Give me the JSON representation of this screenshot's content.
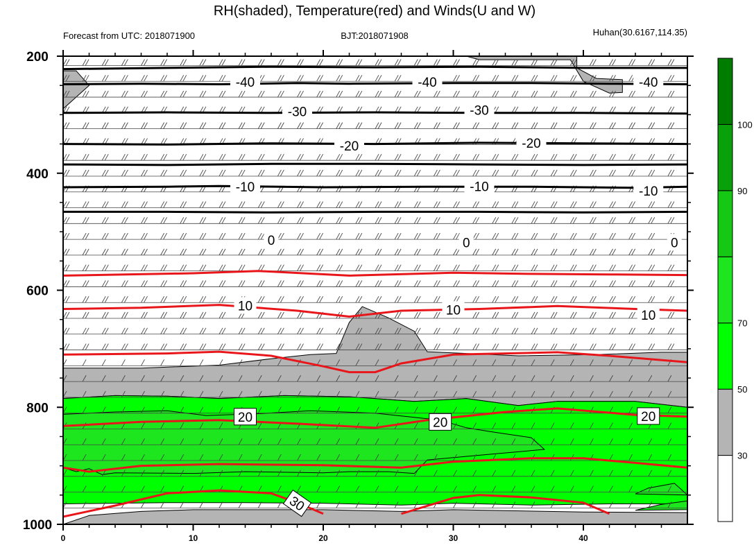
{
  "header": {
    "title": "RH(shaded), Temperature(red) and Winds(U and W)",
    "forecast": "Forecast from UTC: 2018071900",
    "bjt": "BJT:2018071908",
    "location": "Huhan(30.6167,114.35)"
  },
  "chart_data": {
    "type": "contour",
    "title": "RH(shaded), Temperature(red) and Winds(U and W)",
    "xlim": [
      0,
      48
    ],
    "ylim": [
      1000,
      200
    ],
    "x_ticks": [
      0,
      10,
      20,
      30,
      40
    ],
    "y_ticks": [
      200,
      400,
      600,
      800,
      1000
    ],
    "colorbar": {
      "ticks": [
        30,
        50,
        70,
        90,
        100
      ],
      "bins": [
        {
          "max": 30,
          "color": "#ffffff"
        },
        {
          "max": 50,
          "color": "#b4b4b4"
        },
        {
          "max": 70,
          "color": "#00ff00"
        },
        {
          "max": 80,
          "color": "#1ee61e"
        },
        {
          "max": 90,
          "color": "#14c814"
        },
        {
          "max": 100,
          "color": "#0aa00a"
        },
        {
          "max": 110,
          "color": "#007d00"
        }
      ]
    },
    "rh_regions": [
      {
        "level": "gray",
        "color": "#b4b4b4",
        "points": [
          [
            0,
            225
          ],
          [
            0,
            290
          ],
          [
            2,
            250
          ],
          [
            1,
            225
          ]
        ]
      },
      {
        "level": "gray",
        "color": "#b4b4b4",
        "points": [
          [
            31,
            200
          ],
          [
            32,
            206
          ],
          [
            39,
            206
          ],
          [
            40,
            243
          ],
          [
            42,
            263
          ],
          [
            43,
            262
          ],
          [
            43,
            240
          ],
          [
            41,
            238
          ],
          [
            39.5,
            220
          ],
          [
            39.5,
            200
          ]
        ]
      },
      {
        "level": "gray",
        "color": "#b4b4b4",
        "points": [
          [
            0,
            733
          ],
          [
            6,
            733
          ],
          [
            12,
            728
          ],
          [
            16,
            717
          ],
          [
            19,
            710
          ],
          [
            21,
            708
          ],
          [
            22,
            655
          ],
          [
            23,
            628
          ],
          [
            25,
            647
          ],
          [
            27,
            670
          ],
          [
            28,
            705
          ],
          [
            31,
            708
          ],
          [
            35,
            712
          ],
          [
            41,
            710
          ],
          [
            46,
            706
          ],
          [
            48,
            706
          ],
          [
            48,
            800
          ],
          [
            44,
            790
          ],
          [
            38,
            790
          ],
          [
            35,
            797
          ],
          [
            31,
            785
          ],
          [
            27,
            790
          ],
          [
            22,
            782
          ],
          [
            17,
            780
          ],
          [
            12,
            785
          ],
          [
            8,
            781
          ],
          [
            4,
            780
          ],
          [
            0,
            785
          ]
        ]
      },
      {
        "level": "green",
        "color": "#00ff00",
        "points": [
          [
            0,
            785
          ],
          [
            4,
            780
          ],
          [
            8,
            781
          ],
          [
            12,
            785
          ],
          [
            17,
            780
          ],
          [
            22,
            782
          ],
          [
            27,
            790
          ],
          [
            31,
            785
          ],
          [
            35,
            797
          ],
          [
            38,
            790
          ],
          [
            44,
            790
          ],
          [
            48,
            800
          ],
          [
            48,
            965
          ],
          [
            42,
            965
          ],
          [
            36,
            967
          ],
          [
            30,
            964
          ],
          [
            26,
            967
          ],
          [
            20,
            964
          ],
          [
            14,
            963
          ],
          [
            8,
            963
          ],
          [
            4,
            964
          ],
          [
            0,
            965
          ]
        ]
      },
      {
        "level": "green2",
        "color": "#1ee61e",
        "points": [
          [
            0,
            812
          ],
          [
            4,
            808
          ],
          [
            8,
            806
          ],
          [
            11,
            814
          ],
          [
            15,
            811
          ],
          [
            19,
            806
          ],
          [
            24,
            810
          ],
          [
            29,
            822
          ],
          [
            31,
            835
          ],
          [
            33,
            842
          ],
          [
            36,
            852
          ],
          [
            37,
            872
          ],
          [
            32,
            882
          ],
          [
            28,
            890
          ],
          [
            27,
            913
          ],
          [
            25,
            910
          ],
          [
            22,
            910
          ],
          [
            20,
            912
          ],
          [
            14,
            910
          ],
          [
            10,
            913
          ],
          [
            4,
            912
          ],
          [
            3,
            915
          ],
          [
            2,
            905
          ],
          [
            1,
            910
          ],
          [
            0,
            903
          ]
        ]
      },
      {
        "level": "green2",
        "color": "#1ee61e",
        "points": [
          [
            47,
            930
          ],
          [
            45,
            938
          ],
          [
            44,
            948
          ],
          [
            48,
            950
          ]
        ]
      },
      {
        "level": "green2",
        "color": "#1ee61e",
        "points": [
          [
            44,
            976
          ],
          [
            46,
            966
          ],
          [
            48,
            960
          ],
          [
            48,
            975
          ]
        ]
      },
      {
        "level": "gray",
        "color": "#b4b4b4",
        "points": [
          [
            0,
            1000
          ],
          [
            2,
            985
          ],
          [
            6,
            978
          ],
          [
            10,
            975
          ],
          [
            20,
            975
          ],
          [
            26,
            978
          ],
          [
            30,
            975
          ],
          [
            40,
            979
          ],
          [
            48,
            980
          ],
          [
            48,
            1000
          ]
        ]
      }
    ],
    "isotherm_black": [
      {
        "values": [
          [
            0,
            222
          ],
          [
            8,
            220
          ],
          [
            16,
            218
          ],
          [
            24,
            219
          ],
          [
            32,
            218
          ],
          [
            40,
            220
          ],
          [
            48,
            220
          ]
        ]
      },
      {
        "values": [
          [
            0,
            248
          ],
          [
            6,
            247
          ],
          [
            12,
            248
          ],
          [
            18,
            246
          ],
          [
            22,
            247
          ],
          [
            30,
            246
          ],
          [
            36,
            246
          ],
          [
            42,
            247
          ],
          [
            48,
            248
          ]
        ]
      },
      {
        "values": [
          [
            0,
            297
          ],
          [
            8,
            296
          ],
          [
            16,
            297
          ],
          [
            24,
            296
          ],
          [
            32,
            297
          ],
          [
            40,
            297
          ],
          [
            48,
            298
          ]
        ]
      },
      {
        "values": [
          [
            0,
            350
          ],
          [
            8,
            351
          ],
          [
            16,
            349
          ],
          [
            24,
            350
          ],
          [
            32,
            348
          ],
          [
            40,
            349
          ],
          [
            48,
            350
          ]
        ]
      },
      {
        "values": [
          [
            0,
            385
          ],
          [
            8,
            386
          ],
          [
            16,
            384
          ],
          [
            24,
            384
          ],
          [
            32,
            385
          ],
          [
            40,
            386
          ],
          [
            48,
            385
          ]
        ]
      },
      {
        "values": [
          [
            0,
            424
          ],
          [
            8,
            423
          ],
          [
            12,
            422
          ],
          [
            20,
            424
          ],
          [
            28,
            423
          ],
          [
            36,
            423
          ],
          [
            44,
            425
          ],
          [
            48,
            423
          ]
        ]
      },
      {
        "values": [
          [
            0,
            466
          ],
          [
            8,
            466
          ],
          [
            16,
            467
          ],
          [
            24,
            466
          ],
          [
            32,
            466
          ],
          [
            40,
            467
          ],
          [
            48,
            466
          ]
        ]
      }
    ],
    "isotherm_red": [
      {
        "values": [
          [
            0,
            575
          ],
          [
            10,
            571
          ],
          [
            15,
            567
          ],
          [
            22,
            575
          ],
          [
            30,
            570
          ],
          [
            36,
            572
          ],
          [
            42,
            573
          ],
          [
            48,
            574
          ]
        ]
      },
      {
        "values": [
          [
            0,
            632
          ],
          [
            6,
            630
          ],
          [
            12,
            625
          ],
          [
            18,
            635
          ],
          [
            22,
            645
          ],
          [
            26,
            635
          ],
          [
            32,
            632
          ],
          [
            38,
            627
          ],
          [
            44,
            632
          ],
          [
            48,
            635
          ]
        ]
      },
      {
        "values": [
          [
            0,
            710
          ],
          [
            8,
            708
          ],
          [
            12,
            705
          ],
          [
            16,
            712
          ],
          [
            20,
            730
          ],
          [
            22,
            740
          ],
          [
            24,
            740
          ],
          [
            26,
            725
          ],
          [
            30,
            710
          ],
          [
            38,
            706
          ],
          [
            42,
            712
          ],
          [
            48,
            723
          ]
        ]
      },
      {
        "values": [
          [
            0,
            832
          ],
          [
            6,
            825
          ],
          [
            12,
            822
          ],
          [
            18,
            828
          ],
          [
            24,
            835
          ],
          [
            28,
            822
          ],
          [
            34,
            808
          ],
          [
            38,
            802
          ],
          [
            44,
            813
          ],
          [
            48,
            816
          ]
        ]
      },
      {
        "values": [
          [
            0,
            903
          ],
          [
            2,
            910
          ],
          [
            6,
            900
          ],
          [
            12,
            897
          ],
          [
            20,
            899
          ],
          [
            26,
            903
          ],
          [
            30,
            893
          ],
          [
            36,
            887
          ],
          [
            40,
            887
          ],
          [
            44,
            895
          ],
          [
            48,
            903
          ]
        ]
      },
      {
        "values": [
          [
            0,
            987
          ],
          [
            4,
            968
          ],
          [
            8,
            947
          ],
          [
            12,
            942
          ],
          [
            16,
            947
          ],
          [
            18,
            963
          ],
          [
            20,
            982
          ]
        ]
      },
      {
        "values": [
          [
            26,
            982
          ],
          [
            30,
            955
          ],
          [
            32,
            950
          ],
          [
            36,
            954
          ],
          [
            40,
            963
          ],
          [
            42,
            982
          ]
        ]
      }
    ],
    "contour_labels": [
      {
        "text": "-40",
        "x": 14,
        "y": 244
      },
      {
        "text": "-40",
        "x": 28,
        "y": 244
      },
      {
        "text": "-40",
        "x": 45,
        "y": 244
      },
      {
        "text": "-30",
        "x": 18,
        "y": 294
      },
      {
        "text": "-30",
        "x": 32,
        "y": 292
      },
      {
        "text": "-20",
        "x": 22,
        "y": 353
      },
      {
        "text": "-20",
        "x": 36,
        "y": 348
      },
      {
        "text": "-10",
        "x": 14,
        "y": 423
      },
      {
        "text": "-10",
        "x": 32,
        "y": 422
      },
      {
        "text": "-10",
        "x": 45,
        "y": 430
      },
      {
        "text": "0",
        "x": 16,
        "y": 514
      },
      {
        "text": "0",
        "x": 31,
        "y": 518
      },
      {
        "text": "0",
        "x": 47,
        "y": 518
      },
      {
        "text": "10",
        "x": 14,
        "y": 626
      },
      {
        "text": "10",
        "x": 30,
        "y": 633
      },
      {
        "text": "10",
        "x": 45,
        "y": 642
      },
      {
        "text": "20",
        "x": 14,
        "y": 816
      },
      {
        "text": "20",
        "x": 29,
        "y": 825
      },
      {
        "text": "20",
        "x": 45,
        "y": 815
      },
      {
        "text": "30",
        "x": 18,
        "y": 964
      }
    ],
    "wind_rows": [
      216,
      243,
      270,
      297,
      324,
      351,
      378,
      405,
      432,
      459,
      486,
      513,
      540,
      567,
      594,
      621,
      648,
      675,
      702,
      729,
      756,
      783,
      810,
      837,
      864,
      891,
      918,
      945,
      972
    ]
  }
}
